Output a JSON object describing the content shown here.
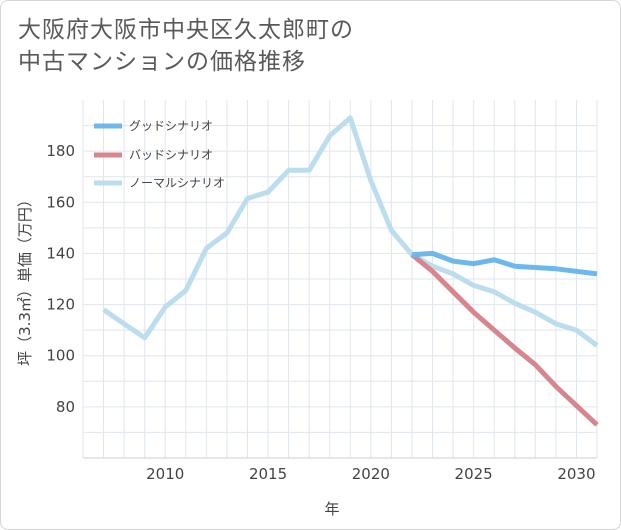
{
  "title_lines": [
    "大阪府大阪市中央区久太郎町の",
    "中古マンションの価格推移"
  ],
  "chart_data": {
    "type": "line",
    "xlabel": "年",
    "ylabel": "坪（3.3㎡）単価（万円）",
    "xlim": [
      2006,
      2031
    ],
    "ylim": [
      60,
      200
    ],
    "xticks": [
      2010,
      2015,
      2020,
      2025,
      2030
    ],
    "yticks": [
      80,
      100,
      120,
      140,
      160,
      180
    ],
    "grid": true,
    "legend_position": "top-left",
    "series": [
      {
        "name": "グッドシナリオ",
        "color": "#6cb8ec",
        "x": [
          2022,
          2023,
          2024,
          2025,
          2026,
          2027,
          2028,
          2029,
          2030,
          2031
        ],
        "y": [
          139.5,
          140,
          137,
          136,
          137.5,
          135,
          134.5,
          134,
          133,
          132
        ]
      },
      {
        "name": "バッドシナリオ",
        "color": "#d6868c",
        "x": [
          2022,
          2023,
          2024,
          2025,
          2026,
          2027,
          2028,
          2029,
          2030,
          2031
        ],
        "y": [
          139.5,
          133,
          125,
          117,
          110,
          103,
          96.5,
          88,
          80.5,
          73
        ]
      },
      {
        "name": "ノーマルシナリオ",
        "color": "#bcdded",
        "x": [
          2007,
          2008,
          2009,
          2010,
          2011,
          2012,
          2013,
          2014,
          2015,
          2016,
          2017,
          2018,
          2019,
          2020,
          2021,
          2022,
          2023,
          2024,
          2025,
          2026,
          2027,
          2028,
          2029,
          2030,
          2031
        ],
        "y": [
          118,
          112.5,
          107,
          119,
          125.5,
          142,
          148,
          161.5,
          164,
          172.5,
          172.5,
          186,
          193,
          168.5,
          149,
          139.5,
          135,
          132,
          127.5,
          125,
          120.5,
          117,
          112.5,
          110,
          104
        ]
      }
    ]
  }
}
